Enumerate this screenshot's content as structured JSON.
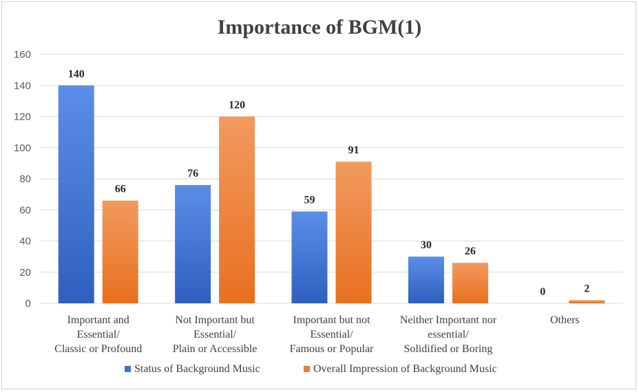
{
  "chart_data": {
    "type": "bar",
    "title": "Importance of BGM(1)",
    "xlabel": "",
    "ylabel": "",
    "ylim": [
      0,
      160
    ],
    "yticks": [
      0,
      20,
      40,
      60,
      80,
      100,
      120,
      140,
      160
    ],
    "grid": true,
    "legend_position": "bottom",
    "categories": [
      [
        "Important and",
        "Essential/",
        "Classic or Profound"
      ],
      [
        "Not Important but",
        "Essential/",
        "Plain or Accessible"
      ],
      [
        "Important but not",
        "Essential/",
        "Famous or Popular"
      ],
      [
        "Neither Important nor",
        "essential/",
        "Solidified or Boring"
      ],
      [
        "Others"
      ]
    ],
    "series": [
      {
        "name": "Status of Background Music",
        "values": [
          140,
          76,
          59,
          30,
          0
        ],
        "color": "#4472c4",
        "gradient": [
          "#5b8ee8",
          "#2f5fbf"
        ]
      },
      {
        "name": "Overall Impression of Background Music",
        "values": [
          66,
          120,
          91,
          26,
          2
        ],
        "color": "#ed7d31",
        "gradient": [
          "#f29a5f",
          "#e8701f"
        ]
      }
    ]
  }
}
